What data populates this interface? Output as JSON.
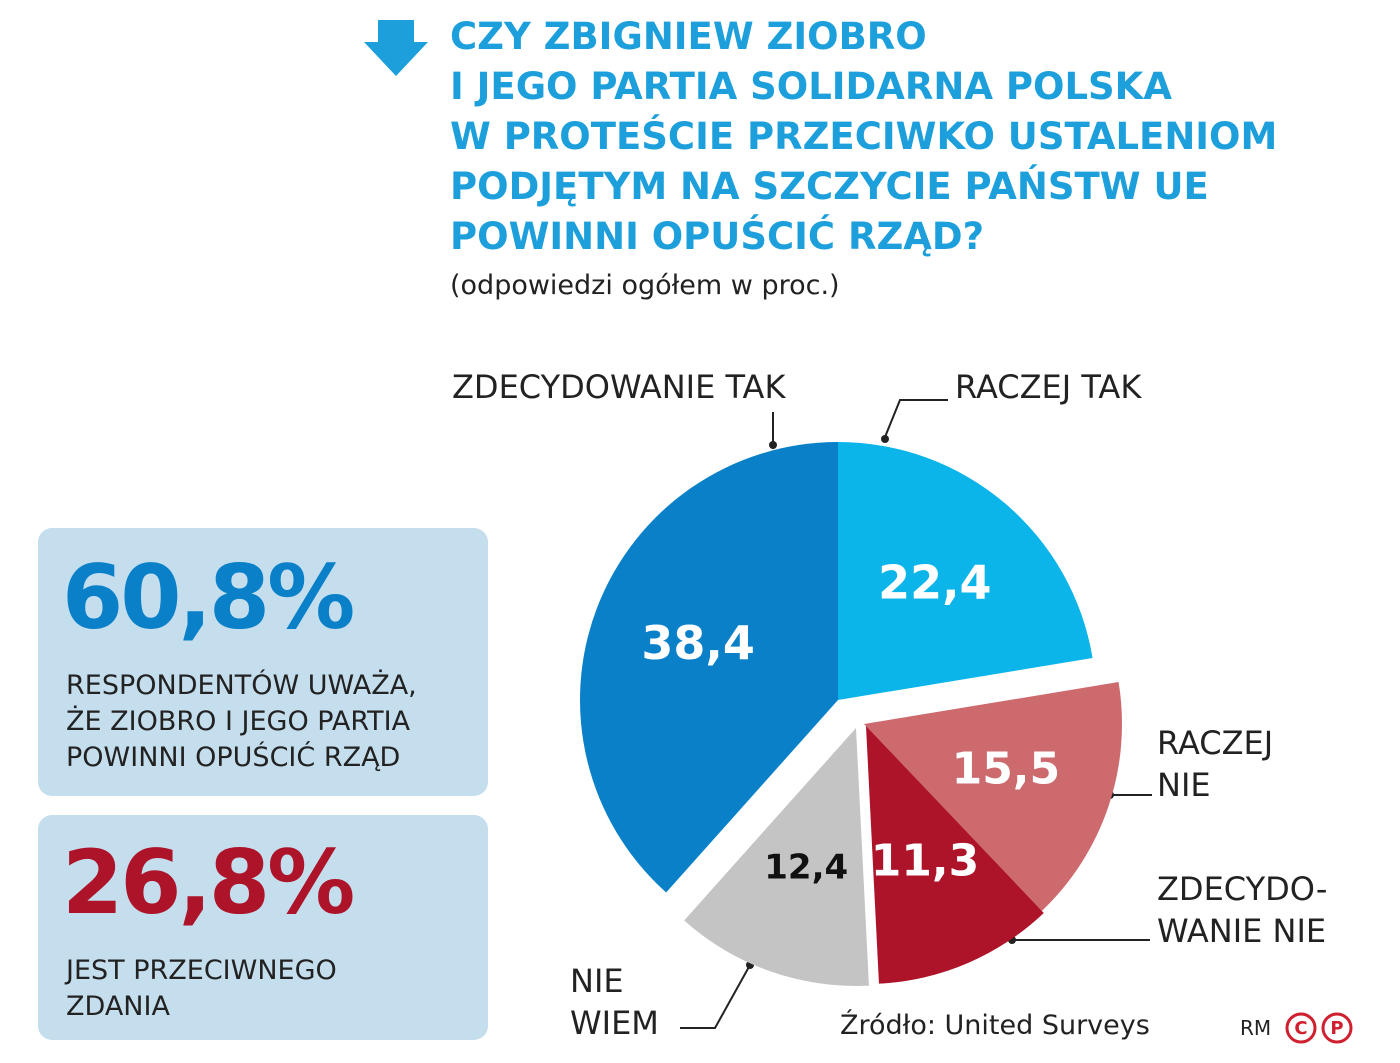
{
  "chart_data": {
    "type": "pie",
    "title": "CZY ZBIGNIEW ZIOBRO\nI JEGO PARTIA SOLIDARNA POLSKA\nW PROTEŚCIE PRZECIWKO USTALENIOM\nPODJĘTYM NA SZCZYCIE PAŃSTW UE\nPOWINNI OPUŚCIĆ RZĄD?",
    "subtitle": "(odpowiedzi ogółem w proc.)",
    "categories": [
      "ZDECYDOWANIE TAK",
      "RACZEJ TAK",
      "RACZEJ\nNIE",
      "ZDECYDO-\nWANIE NIE",
      "NIE\nWIEM"
    ],
    "values": [
      38.4,
      22.4,
      15.5,
      11.3,
      12.4
    ],
    "value_labels": [
      "38,4",
      "22,4",
      "15,5",
      "11,3",
      "12,4"
    ],
    "colors": [
      "#0a80c9",
      "#0bb4e9",
      "#cd6a6e",
      "#ad1329",
      "#c4c4c4"
    ],
    "source": "Źródło: United Surveys"
  },
  "summary": [
    {
      "value": "60,8%",
      "text": "RESPONDENTÓW UWAŻA,\nŻE ZIOBRO I JEGO PARTIA\nPOWINNI OPUŚCIĆ RZĄD"
    },
    {
      "value": "26,8%",
      "text": "JEST PRZECIWNEGO\nZDANIA"
    }
  ],
  "credit": "RM",
  "logo": [
    "C",
    "P"
  ]
}
